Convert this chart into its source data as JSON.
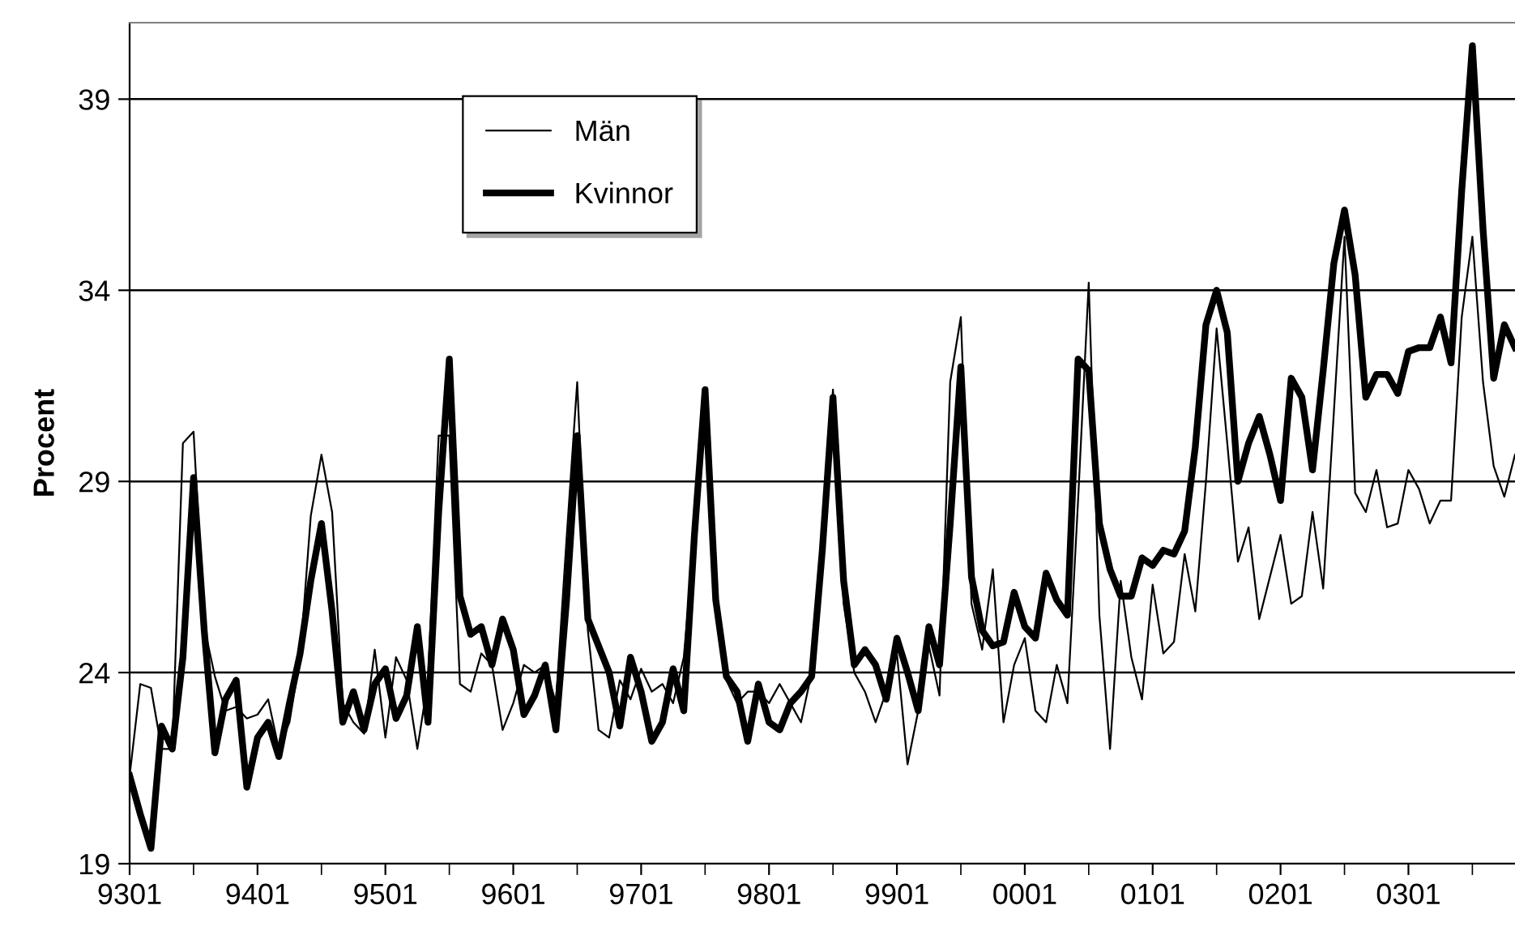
{
  "chart_data": {
    "type": "line",
    "ylabel": "Procent",
    "categories": [
      "9301",
      null,
      null,
      null,
      null,
      null,
      null,
      null,
      null,
      null,
      null,
      null,
      "9401",
      null,
      null,
      null,
      null,
      null,
      null,
      null,
      null,
      null,
      null,
      null,
      "9501",
      null,
      null,
      null,
      null,
      null,
      null,
      null,
      null,
      null,
      null,
      null,
      "9601",
      null,
      null,
      null,
      null,
      null,
      null,
      null,
      null,
      null,
      null,
      null,
      "9701",
      null,
      null,
      null,
      null,
      null,
      null,
      null,
      null,
      null,
      null,
      null,
      "9801",
      null,
      null,
      null,
      null,
      null,
      null,
      null,
      null,
      null,
      null,
      null,
      "9901",
      null,
      null,
      null,
      null,
      null,
      null,
      null,
      null,
      null,
      null,
      null,
      "0001",
      null,
      null,
      null,
      null,
      null,
      null,
      null,
      null,
      null,
      null,
      null,
      "0101",
      null,
      null,
      null,
      null,
      null,
      null,
      null,
      null,
      null,
      null,
      null,
      "0201",
      null,
      null,
      null,
      null,
      null,
      null,
      null,
      null,
      null,
      null,
      null,
      "0301",
      null,
      null,
      null,
      null,
      null,
      null,
      null,
      null,
      null,
      null
    ],
    "series": [
      {
        "name": "Män",
        "color": "#000000",
        "values": [
          21.3,
          23.7,
          23.6,
          22.0,
          22.0,
          30.0,
          30.3,
          25.2,
          23.9,
          23.0,
          23.1,
          22.8,
          22.9,
          23.3,
          22.0,
          22.7,
          24.4,
          28.1,
          29.7,
          28.2,
          23.2,
          22.7,
          22.4,
          24.6,
          22.3,
          24.4,
          23.8,
          22.0,
          23.8,
          30.2,
          30.2,
          23.7,
          23.5,
          24.5,
          24.2,
          22.5,
          23.2,
          24.2,
          24.0,
          24.2,
          23.2,
          27.5,
          31.6,
          25.1,
          22.5,
          22.3,
          23.8,
          23.3,
          24.1,
          23.5,
          23.7,
          23.2,
          24.4,
          27.6,
          31.3,
          25.9,
          23.8,
          23.2,
          23.5,
          23.5,
          23.2,
          23.7,
          23.2,
          22.7,
          24.0,
          27.2,
          31.4,
          25.8,
          24.0,
          23.5,
          22.7,
          23.5,
          24.5,
          21.6,
          23.0,
          24.7,
          23.4,
          31.6,
          33.3,
          25.8,
          24.6,
          26.7,
          22.7,
          24.2,
          24.9,
          23.0,
          22.7,
          24.2,
          23.2,
          28.5,
          34.2,
          25.5,
          22.0,
          26.4,
          24.4,
          23.3,
          26.3,
          24.5,
          24.8,
          27.1,
          25.6,
          29.0,
          33.0,
          30.0,
          26.9,
          27.8,
          25.4,
          26.5,
          27.6,
          25.8,
          26.0,
          28.2,
          26.2,
          30.8,
          35.4,
          28.7,
          28.2,
          29.3,
          27.8,
          27.9,
          29.3,
          28.8,
          27.9,
          28.5,
          28.5,
          33.3,
          35.4,
          31.6,
          29.4,
          28.6,
          29.7
        ]
      },
      {
        "name": "Kvinnor",
        "color": "#000000",
        "values": [
          21.3,
          20.3,
          19.4,
          22.6,
          22.0,
          24.4,
          29.1,
          25.1,
          21.9,
          23.3,
          23.8,
          21.0,
          22.3,
          22.7,
          21.8,
          23.2,
          24.5,
          26.4,
          27.9,
          25.6,
          22.7,
          23.5,
          22.5,
          23.7,
          24.1,
          22.8,
          23.4,
          25.2,
          22.7,
          28.2,
          32.2,
          26.0,
          25.0,
          25.2,
          24.2,
          25.4,
          24.6,
          22.9,
          23.4,
          24.2,
          22.5,
          25.9,
          30.2,
          25.4,
          24.7,
          24.0,
          22.6,
          24.4,
          23.5,
          22.2,
          22.7,
          24.1,
          23.0,
          27.6,
          31.4,
          25.9,
          23.9,
          23.5,
          22.2,
          23.7,
          22.7,
          22.5,
          23.2,
          23.5,
          23.9,
          27.2,
          31.2,
          26.4,
          24.2,
          24.6,
          24.2,
          23.3,
          24.9,
          24.0,
          23.0,
          25.2,
          24.2,
          27.9,
          32.0,
          26.5,
          25.1,
          24.7,
          24.8,
          26.1,
          25.2,
          24.9,
          26.6,
          25.9,
          25.5,
          32.2,
          31.9,
          27.9,
          26.7,
          26.0,
          26.0,
          27.0,
          26.8,
          27.2,
          27.1,
          27.7,
          29.9,
          33.1,
          34.0,
          32.9,
          29.0,
          30.0,
          30.7,
          29.7,
          28.5,
          31.7,
          31.2,
          29.3,
          31.9,
          34.7,
          36.1,
          34.4,
          31.2,
          31.8,
          31.8,
          31.3,
          32.4,
          32.5,
          32.5,
          33.3,
          32.1,
          36.6,
          40.4,
          35.6,
          31.7,
          33.1,
          32.5
        ]
      }
    ],
    "ylim": [
      19,
      41
    ],
    "yticks": [
      19,
      24,
      29,
      34,
      39
    ],
    "grid": "y",
    "legend": "top left",
    "marker": "none",
    "line_style": "solid"
  }
}
